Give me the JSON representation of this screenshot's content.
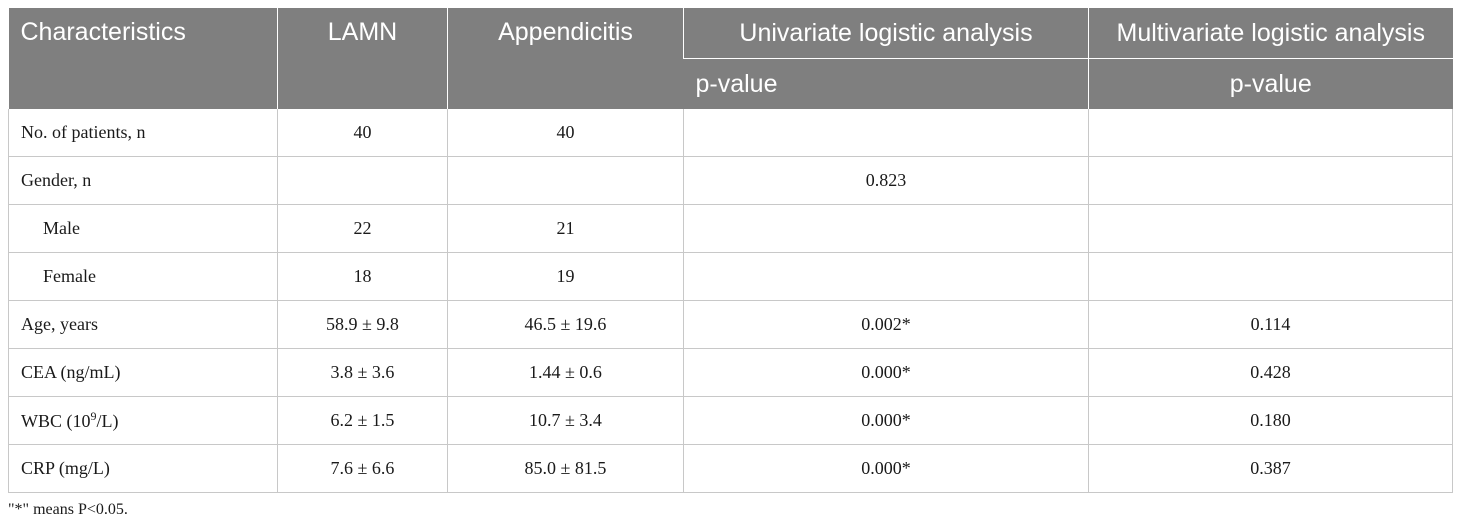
{
  "table": {
    "headers": {
      "characteristics": "Characteristics",
      "lamn": "LAMN",
      "appendicitis": "Appendicitis",
      "univariate": "Univariate logistic analysis",
      "multivariate": "Multivariate logistic analysis",
      "univariate_sub": "p-value",
      "multivariate_sub": "p-value"
    },
    "rows": [
      {
        "label": "No. of patients, n",
        "lamn": "40",
        "appendicitis": "40",
        "univariate": "",
        "multivariate": ""
      },
      {
        "label": "Gender, n",
        "lamn": "",
        "appendicitis": "",
        "univariate": "0.823",
        "multivariate": ""
      },
      {
        "label": "Male",
        "lamn": "22",
        "appendicitis": "21",
        "univariate": "",
        "multivariate": ""
      },
      {
        "label": "Female",
        "lamn": "18",
        "appendicitis": "19",
        "univariate": "",
        "multivariate": ""
      },
      {
        "label": "Age, years",
        "lamn": "58.9 ± 9.8",
        "appendicitis": "46.5 ± 19.6",
        "univariate": "0.002*",
        "multivariate": "0.114"
      },
      {
        "label": "CEA (ng/mL)",
        "lamn": "3.8 ± 3.6",
        "appendicitis": "1.44 ± 0.6",
        "univariate": "0.000*",
        "multivariate": "0.428"
      },
      {
        "label_pre": "WBC (10",
        "label_sup": "9",
        "label_post": "/L)",
        "lamn": "6.2 ± 1.5",
        "appendicitis": "10.7 ± 3.4",
        "univariate": "0.000*",
        "multivariate": "0.180"
      },
      {
        "label": "CRP (mg/L)",
        "lamn": "7.6 ± 6.6",
        "appendicitis": "85.0 ± 81.5",
        "univariate": "0.000*",
        "multivariate": "0.387"
      }
    ]
  },
  "footnote": "\"*\" means P<0.05."
}
